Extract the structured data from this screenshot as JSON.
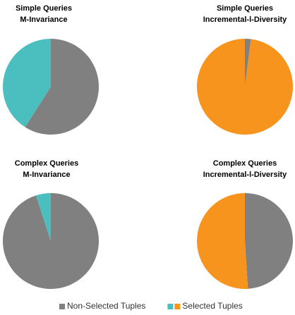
{
  "chart_data": [
    {
      "type": "pie",
      "title": [
        "Simple Queries",
        "M-Invariance"
      ],
      "values": [
        59,
        41
      ],
      "colors": [
        "#808080",
        "#4bbfbf"
      ]
    },
    {
      "type": "pie",
      "title": [
        "Simple Queries",
        "Incremental-l-Diversity"
      ],
      "values": [
        2,
        98
      ],
      "colors": [
        "#808080",
        "#f7941d"
      ]
    },
    {
      "type": "pie",
      "title": [
        "Complex Queries",
        "M-Invariance"
      ],
      "values": [
        95,
        5
      ],
      "colors": [
        "#808080",
        "#4bbfbf"
      ]
    },
    {
      "type": "pie",
      "title": [
        "Complex Queries",
        "Incremental-l-Diversity"
      ],
      "values": [
        49,
        51
      ],
      "colors": [
        "#808080",
        "#f7941d"
      ]
    }
  ],
  "legend": [
    {
      "label": "Non-Selected Tuples",
      "colors": [
        "#808080"
      ]
    },
    {
      "label": "Selected Tuples",
      "colors": [
        "#4bbfbf",
        "#f7941d"
      ]
    }
  ]
}
